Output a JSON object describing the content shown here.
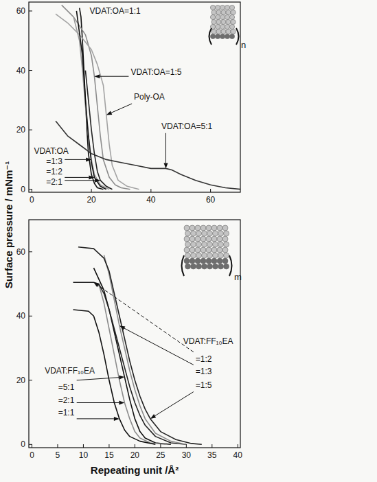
{
  "chart_data": [
    {
      "type": "line",
      "xlim": [
        -1,
        70
      ],
      "xticks": [
        0,
        20,
        40,
        60
      ],
      "ylim": [
        -1,
        63
      ],
      "yticks": [
        0,
        20,
        40,
        60
      ],
      "grid": false,
      "y_label": "Surface pressure / mNm⁻¹",
      "annotations": [
        "VDAT:OA"
      ],
      "inset_label": "n",
      "series": [
        {
          "name": "VDAT:OA=1:1",
          "color": "#111111",
          "x": [
            16,
            16.5,
            17,
            17.5,
            18,
            18.5,
            19,
            20,
            21,
            22,
            24
          ],
          "values": [
            61,
            58,
            50,
            40,
            30,
            20,
            12,
            5,
            2,
            0.5,
            0
          ]
        },
        {
          "name": "VDAT:OA=1:5",
          "color": "#8c8c8c",
          "x": [
            10,
            14,
            18,
            20,
            21,
            22,
            23,
            24,
            26,
            28,
            30,
            33
          ],
          "values": [
            62,
            58,
            52,
            45,
            38,
            28,
            18,
            10,
            4,
            1.5,
            0.5,
            0
          ]
        },
        {
          "name": "Poly-OA",
          "color": "#a3a3a3",
          "x": [
            8,
            12,
            16,
            20,
            22,
            24,
            25,
            26,
            27,
            29,
            32,
            36
          ],
          "values": [
            59,
            56,
            52,
            47,
            42,
            35,
            25,
            15,
            8,
            3,
            1,
            0
          ]
        },
        {
          "name": "VDAT:OA=5:1",
          "color": "#333333",
          "x": [
            8,
            12,
            16,
            20,
            25,
            30,
            35,
            40,
            45,
            47,
            50,
            55,
            60,
            65,
            70
          ],
          "values": [
            23,
            18,
            15,
            12,
            10,
            9,
            8,
            7,
            7,
            6.5,
            5,
            3,
            1.5,
            0.5,
            0
          ]
        },
        {
          "name": "=1:3",
          "color": "#9a9a9a",
          "x": [
            14,
            16,
            17,
            18,
            19,
            20,
            21,
            23,
            26
          ],
          "values": [
            58,
            50,
            40,
            28,
            18,
            10,
            5,
            1.5,
            0
          ]
        },
        {
          "name": "=1:2",
          "color": "#111111",
          "x": [
            15,
            17,
            18,
            19,
            20,
            21,
            23,
            25
          ],
          "values": [
            60,
            45,
            30,
            18,
            9,
            4,
            1,
            0
          ]
        },
        {
          "name": "=2:1",
          "color": "#222222",
          "x": [
            18,
            19,
            20,
            21,
            22,
            23,
            25,
            27
          ],
          "values": [
            40,
            30,
            20,
            12,
            6,
            3,
            1,
            0
          ]
        }
      ]
    },
    {
      "type": "line",
      "xlim": [
        -0.6,
        40.5
      ],
      "xticks": [
        0,
        5,
        10,
        15,
        20,
        25,
        30,
        35,
        40
      ],
      "ylim": [
        -1,
        70
      ],
      "yticks": [
        0,
        20,
        40,
        60
      ],
      "grid": false,
      "x_label": "Repeating unit /Å²",
      "annotations": [
        "VDAT:FF₁₀EA",
        "VDAT:FF₁₀EA"
      ],
      "inset_label": "m",
      "series": [
        {
          "name": "=5:1",
          "color": "#111111",
          "x": [
            12,
            14,
            15,
            16,
            17,
            18,
            19,
            20,
            21,
            22,
            24,
            27
          ],
          "values": [
            55,
            48,
            42,
            35,
            28,
            21,
            14,
            8,
            4,
            2,
            0.5,
            0
          ]
        },
        {
          "name": "=2:1",
          "color": "#8c8c8c",
          "x": [
            13,
            14,
            15,
            16,
            17,
            18,
            19,
            20,
            21,
            23,
            26
          ],
          "values": [
            50,
            44,
            36,
            28,
            20,
            13,
            8,
            4,
            2,
            0.5,
            0
          ]
        },
        {
          "name": "=1:1",
          "color": "#111111",
          "x": [
            8,
            11,
            12,
            13,
            14,
            15,
            16,
            17,
            18,
            19,
            21,
            24
          ],
          "values": [
            42,
            41.5,
            40,
            35,
            28,
            20,
            13,
            8,
            4.5,
            2.5,
            1,
            0
          ]
        },
        {
          "name": "=1:2",
          "color": "#222222",
          "x": [
            8,
            12,
            13,
            14,
            15,
            16,
            17,
            18,
            19,
            20,
            21,
            22,
            24,
            27,
            30
          ],
          "values": [
            50.5,
            50.5,
            50,
            47,
            42,
            36,
            30,
            24,
            18,
            13,
            9,
            6,
            2.5,
            0.5,
            0
          ]
        },
        {
          "name": "=1:3",
          "color": "#8c8c8c",
          "x": [
            14,
            15,
            16,
            17,
            18,
            19,
            20,
            21,
            22,
            24,
            27,
            30
          ],
          "values": [
            59,
            53,
            45,
            37,
            30,
            23,
            17,
            12,
            8,
            3.5,
            1,
            0
          ]
        },
        {
          "name": "=1:5",
          "color": "#222222",
          "x": [
            9,
            12,
            14,
            15,
            16,
            17,
            18,
            19,
            20,
            21,
            22,
            23,
            25,
            28,
            31,
            33
          ],
          "values": [
            61.5,
            61,
            58,
            54,
            47,
            40,
            33,
            26,
            20,
            15,
            11,
            8,
            4,
            1.5,
            0.3,
            0
          ]
        }
      ]
    }
  ]
}
